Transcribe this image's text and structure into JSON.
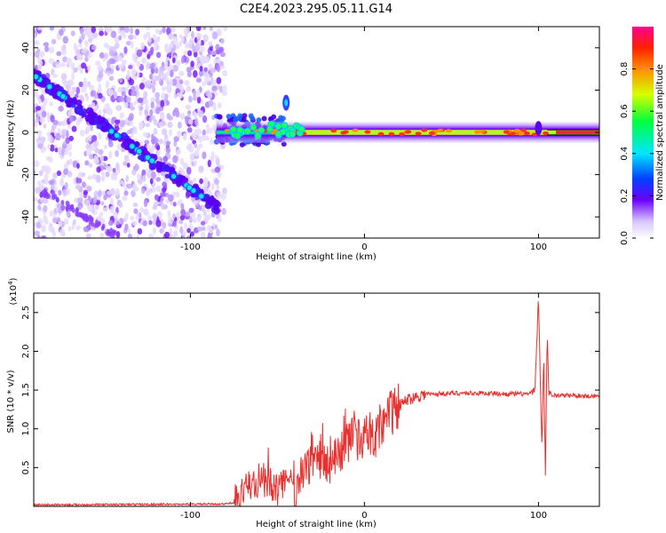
{
  "title": "C2E4.2023.295.05.11.G14",
  "chart_data": [
    {
      "type": "heatmap",
      "xlabel": "Height of straight line (km)",
      "ylabel": "Frequency (Hz)",
      "xlim": [
        -190,
        135
      ],
      "ylim": [
        -50,
        50
      ],
      "x_ticks": [
        -100,
        0,
        100
      ],
      "y_ticks": [
        -40,
        -20,
        0,
        20,
        40
      ],
      "colorbar": {
        "label": "Normalized spectral amplitude",
        "range": [
          0.0,
          1.0
        ],
        "ticks": [
          "0.0",
          "0.2",
          "0.4",
          "0.6",
          "0.8"
        ]
      },
      "features": [
        {
          "kind": "scatter-noise",
          "x_range": [
            -190,
            -80
          ],
          "y_range": [
            -50,
            50
          ]
        },
        {
          "kind": "diagonal-trace",
          "from": [
            -190,
            27
          ],
          "to": [
            -84,
            -36
          ]
        },
        {
          "kind": "ridge",
          "from": [
            -85,
            2
          ],
          "to": [
            135,
            0
          ],
          "peak_value": 0.9
        },
        {
          "kind": "blob",
          "x": -45,
          "y": 14
        }
      ]
    },
    {
      "type": "line",
      "xlabel": "Height of straight line (km)",
      "ylabel": "SNR (10 * v/v)",
      "scale_label": "(x10",
      "scale_exponent": "4",
      "xlim": [
        -190,
        135
      ],
      "ylim": [
        0,
        2.75
      ],
      "x_ticks": [
        -100,
        0,
        100
      ],
      "y_ticks": [
        "0.5",
        "1.0",
        "1.5",
        "2.0",
        "2.5"
      ],
      "series": [
        {
          "color": "#e8302e",
          "x": [
            -190,
            -80,
            -75,
            -70,
            -65,
            -60,
            -55,
            -50,
            -45,
            -40,
            -35,
            -30,
            -25,
            -20,
            -15,
            -10,
            -5,
            0,
            5,
            10,
            15,
            20,
            25,
            30,
            35,
            40,
            50,
            60,
            70,
            80,
            90,
            95,
            98,
            100,
            102,
            103,
            104,
            105,
            106,
            108,
            110,
            120,
            135
          ],
          "y": [
            0.02,
            0.03,
            0.05,
            0.15,
            0.3,
            0.35,
            0.3,
            0.25,
            0.3,
            0.2,
            0.45,
            0.6,
            0.6,
            0.55,
            0.7,
            0.8,
            0.85,
            0.9,
            0.85,
            1.1,
            1.2,
            1.3,
            1.38,
            1.42,
            1.45,
            1.45,
            1.46,
            1.46,
            1.46,
            1.45,
            1.45,
            1.45,
            1.5,
            2.7,
            0.7,
            2.0,
            0.4,
            2.25,
            1.45,
            1.44,
            1.43,
            1.43,
            1.42
          ]
        }
      ]
    }
  ]
}
